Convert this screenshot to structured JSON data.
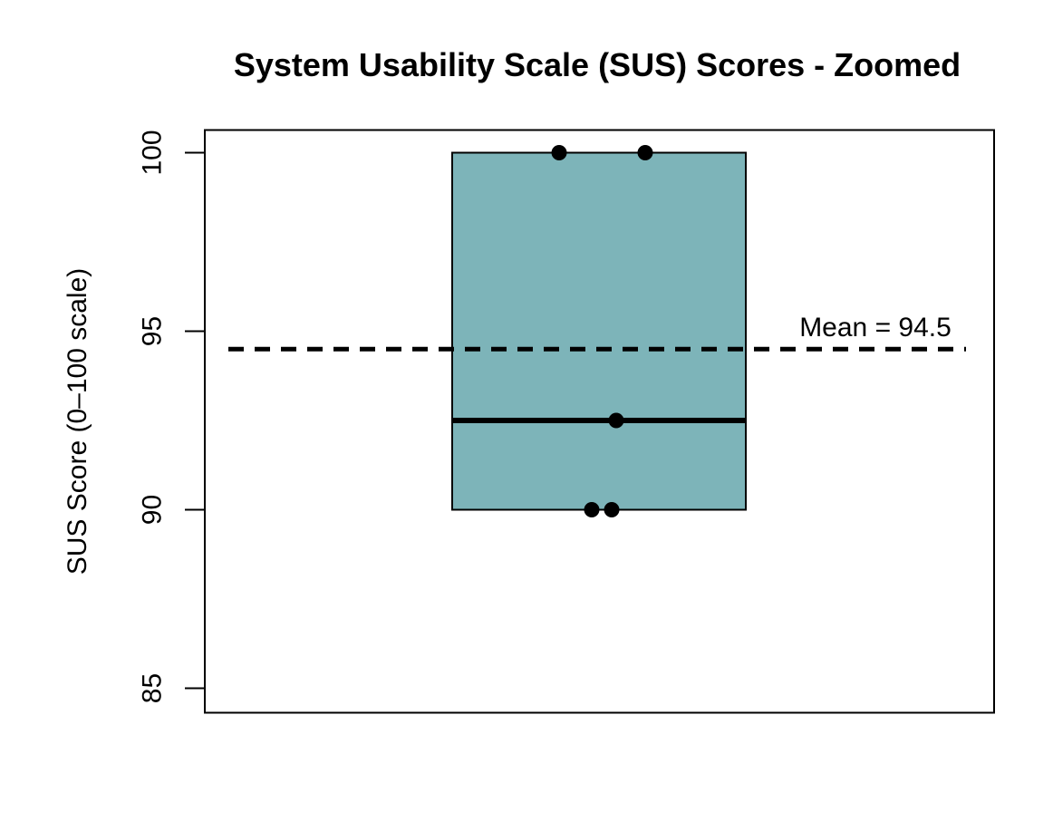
{
  "chart_data": {
    "type": "boxplot",
    "title": "System Usability Scale (SUS) Scores - Zoomed",
    "xlabel": "",
    "ylabel": "SUS Score (0–100 scale)",
    "ylim": [
      84.3,
      100.7
    ],
    "yticks": [
      100,
      95,
      90,
      85
    ],
    "grid": false,
    "legend": false,
    "n_groups": 1,
    "box_stats": {
      "lower_whisker": 90,
      "q1": 90,
      "median": 92.5,
      "q3": 100,
      "upper_whisker": 100
    },
    "mean": 94.5,
    "mean_line_style": "dashed",
    "mean_label": "Mean = 94.5",
    "points": {
      "values": [
        100,
        100,
        92.5,
        90,
        90
      ],
      "x_jitter_units": [
        -0.1086,
        0.1259,
        0.0469,
        -0.0198,
        0.0346
      ]
    },
    "colors": {
      "box_fill": "#7DB4B9",
      "stroke": "#000000",
      "point": "#000000",
      "background": "#FFFFFF",
      "text": "#000000"
    }
  }
}
